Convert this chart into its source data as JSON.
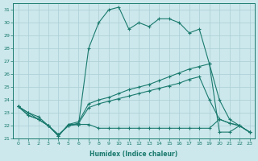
{
  "xlabel": "Humidex (Indice chaleur)",
  "xlim": [
    -0.5,
    23.5
  ],
  "ylim": [
    21,
    31.5
  ],
  "yticks": [
    21,
    22,
    23,
    24,
    25,
    26,
    27,
    28,
    29,
    30,
    31
  ],
  "xticks": [
    0,
    1,
    2,
    3,
    4,
    5,
    6,
    7,
    8,
    9,
    10,
    11,
    12,
    13,
    14,
    15,
    16,
    17,
    18,
    19,
    20,
    21,
    22,
    23
  ],
  "bg_color": "#cce8ec",
  "line_color": "#1a7a6e",
  "grid_color": "#aacdd4",
  "lines": [
    {
      "x": [
        0,
        1,
        2,
        3,
        4,
        5,
        6,
        7,
        8,
        9,
        10,
        11,
        12,
        13,
        14,
        15,
        16,
        17,
        18,
        19,
        20,
        21,
        22,
        23
      ],
      "y": [
        23.5,
        23.0,
        22.5,
        22.0,
        21.2,
        22.1,
        22.1,
        28.0,
        30.0,
        31.0,
        31.2,
        29.5,
        30.0,
        29.7,
        30.3,
        30.3,
        30.0,
        29.2,
        29.5,
        26.8,
        21.5,
        21.5,
        22.0,
        21.5
      ]
    },
    {
      "x": [
        0,
        1,
        2,
        3,
        4,
        5,
        6,
        7,
        8,
        9,
        10,
        11,
        12,
        13,
        14,
        15,
        16,
        17,
        18,
        19,
        20,
        21,
        22,
        23
      ],
      "y": [
        23.5,
        23.0,
        22.7,
        22.0,
        21.2,
        22.1,
        22.3,
        23.7,
        24.0,
        24.2,
        24.5,
        24.8,
        25.0,
        25.2,
        25.5,
        25.8,
        26.1,
        26.4,
        26.6,
        26.8,
        24.0,
        22.5,
        22.0,
        21.5
      ]
    },
    {
      "x": [
        0,
        1,
        2,
        3,
        4,
        5,
        6,
        7,
        8,
        9,
        10,
        11,
        12,
        13,
        14,
        15,
        16,
        17,
        18,
        19,
        20,
        21,
        22,
        23
      ],
      "y": [
        23.5,
        22.8,
        22.5,
        22.0,
        21.3,
        22.0,
        22.2,
        23.4,
        23.7,
        23.9,
        24.1,
        24.3,
        24.5,
        24.7,
        24.9,
        25.1,
        25.3,
        25.6,
        25.8,
        24.0,
        22.5,
        22.2,
        22.0,
        21.5
      ]
    },
    {
      "x": [
        0,
        1,
        2,
        3,
        4,
        5,
        6,
        7,
        8,
        9,
        10,
        11,
        12,
        13,
        14,
        15,
        16,
        17,
        18,
        19,
        20,
        21,
        22,
        23
      ],
      "y": [
        23.5,
        22.8,
        22.5,
        22.0,
        21.3,
        22.0,
        22.1,
        22.1,
        21.8,
        21.8,
        21.8,
        21.8,
        21.8,
        21.8,
        21.8,
        21.8,
        21.8,
        21.8,
        21.8,
        21.8,
        22.5,
        22.2,
        22.0,
        21.5
      ]
    }
  ]
}
